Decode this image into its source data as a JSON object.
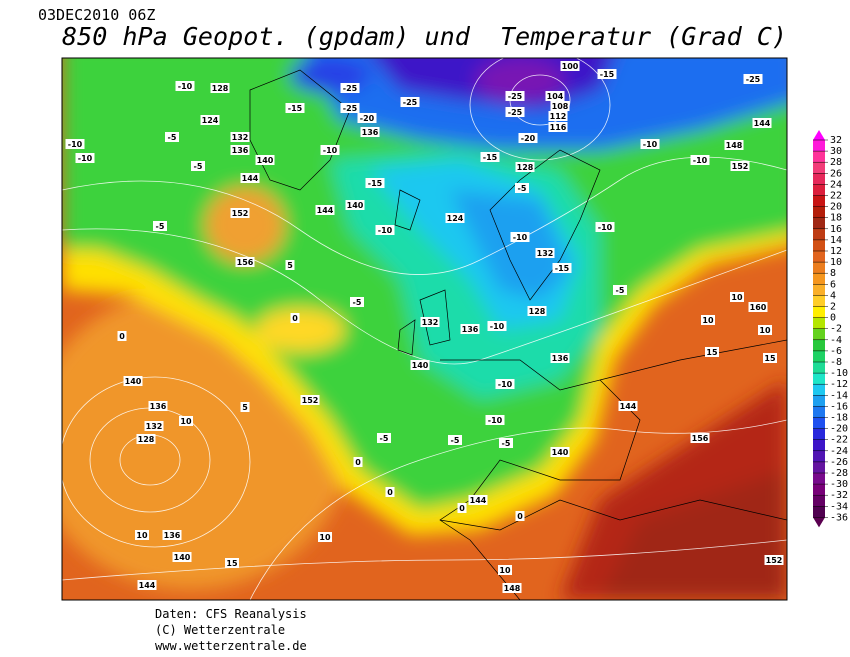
{
  "header": {
    "timestamp": "03DEC2010 06Z",
    "title": "850 hPa Geopot. (gpdam) und  Temperatur (Grad C)"
  },
  "footer": {
    "lines": [
      "Daten: CFS Reanalysis",
      "(C) Wetterzentrale",
      "www.wetterzentrale.de"
    ]
  },
  "colorbar": {
    "levels": [
      32,
      30,
      28,
      26,
      24,
      22,
      20,
      18,
      16,
      14,
      12,
      10,
      8,
      6,
      4,
      2,
      0,
      -2,
      -4,
      -6,
      -8,
      -10,
      -12,
      -14,
      -16,
      -18,
      -20,
      -22,
      -24,
      -26,
      -28,
      -30,
      -32,
      -34,
      -36
    ],
    "colors": [
      "#ff1ad9",
      "#ff3399",
      "#f23c78",
      "#e6285a",
      "#dc1e3c",
      "#c81414",
      "#b41e0a",
      "#a02814",
      "#be3c14",
      "#d25014",
      "#e1641e",
      "#eb7d1e",
      "#f5961e",
      "#faaf28",
      "#ffcd28",
      "#ffee00",
      "#b4e600",
      "#64d21e",
      "#28c83c",
      "#1ed264",
      "#1edc96",
      "#1ee6c8",
      "#1ec8f0",
      "#1ea0f0",
      "#1e78f0",
      "#1e50f0",
      "#2828dc",
      "#3c14c8",
      "#5014b4",
      "#6414a0",
      "#780a8c",
      "#780078",
      "#640064",
      "#500050"
    ],
    "top_color": "#ff00ff",
    "bottom_color": "#5a0050"
  },
  "map": {
    "labels": [
      "-10",
      "128",
      "124",
      "-5",
      "132",
      "136",
      "-10",
      "-10",
      "140",
      "-5",
      "144",
      "-15",
      "-25",
      "-20",
      "136",
      "-25",
      "-25",
      "-25",
      "-25",
      "104",
      "108",
      "112",
      "116",
      "-20",
      "100",
      "-15",
      "-25",
      "-10",
      "144",
      "148",
      "152",
      "-10",
      "-10",
      "-15",
      "140",
      "152",
      "144",
      "124",
      "-10",
      "-10",
      "-10",
      "-5",
      "-15",
      "128",
      "-5",
      "132",
      "-15",
      "-5",
      "156",
      "5",
      "0",
      "-5",
      "132",
      "136",
      "-10",
      "128",
      "10",
      "160",
      "10",
      "140",
      "136",
      "-10",
      "0",
      "140",
      "136",
      "10",
      "132",
      "128",
      "152",
      "5",
      "-10",
      "144",
      "-5",
      "-5",
      "-5",
      "140",
      "0",
      "156",
      "0",
      "144",
      "0",
      "0",
      "10",
      "136",
      "140",
      "10",
      "15",
      "10",
      "148",
      "144",
      "152",
      "10",
      "15",
      "15"
    ]
  }
}
